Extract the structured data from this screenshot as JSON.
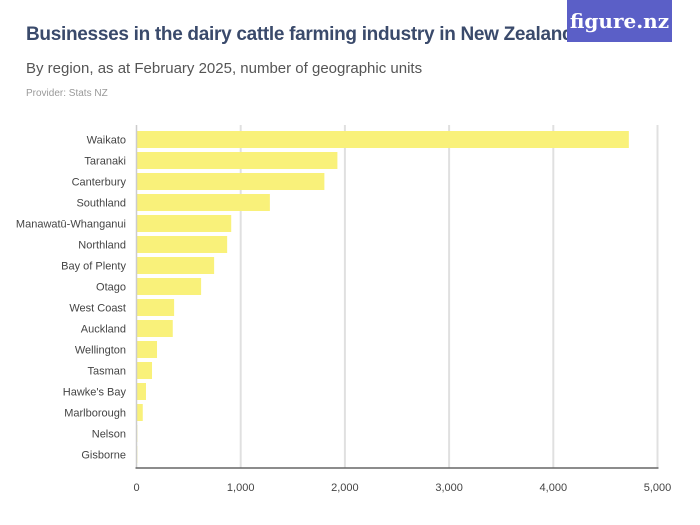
{
  "header": {
    "title": "Businesses in the dairy cattle farming industry in New Zealand",
    "subtitle": "By region, as at February 2025, number of geographic units",
    "provider": "Provider: Stats NZ",
    "logo": "figure.nz"
  },
  "colors": {
    "bar": "#f9f17a",
    "grid": "#e0e0e0",
    "axis": "#666666",
    "logo_bg": "#5b5fc7",
    "title": "#3a4a6b"
  },
  "chart_data": {
    "type": "bar",
    "orientation": "horizontal",
    "categories": [
      "Waikato",
      "Taranaki",
      "Canterbury",
      "Southland",
      "Manawatū-Whanganui",
      "Northland",
      "Bay of Plenty",
      "Otago",
      "West Coast",
      "Auckland",
      "Wellington",
      "Tasman",
      "Hawke's Bay",
      "Marlborough",
      "Nelson",
      "Gisborne"
    ],
    "values": [
      4725,
      1928,
      1803,
      1280,
      909,
      870,
      745,
      620,
      361,
      348,
      197,
      149,
      91,
      60,
      8,
      5
    ],
    "xlim": [
      0,
      5000
    ],
    "xticks": [
      0,
      1000,
      2000,
      3000,
      4000,
      5000
    ],
    "xtick_labels": [
      "0",
      "1,000",
      "2,000",
      "3,000",
      "4,000",
      "5,000"
    ],
    "grid": true,
    "legend": "none"
  }
}
